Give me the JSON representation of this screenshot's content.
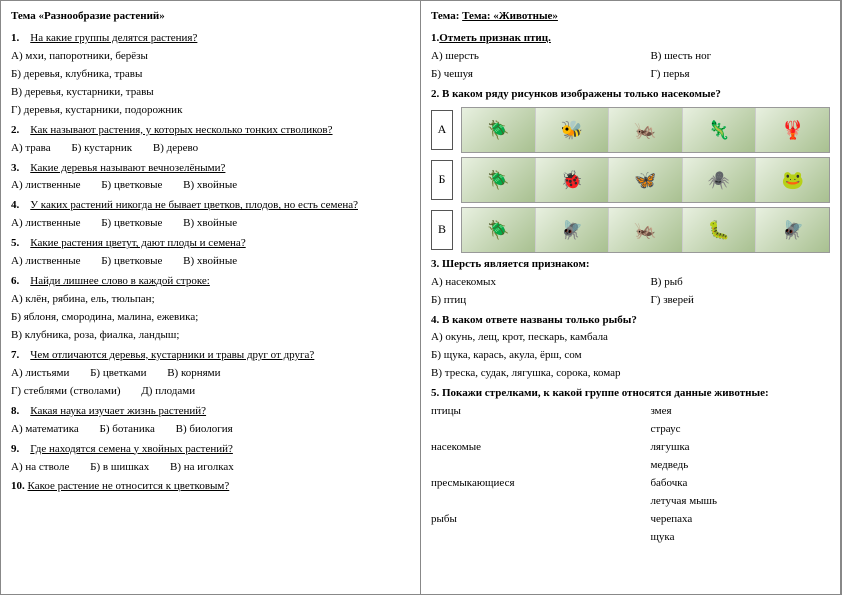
{
  "left": {
    "title": "Тема «Разнообразие растений»",
    "q1": {
      "num": "1.",
      "prompt": "На какие группы делятся растения?",
      "a": "А) мхи, папоротники, берёзы",
      "b": "Б) деревья, клубника, травы",
      "c": "В) деревья, кустарники, травы",
      "d": "Г) деревья, кустарники, подорожник"
    },
    "q2": {
      "num": "2.",
      "prompt": "Как называют растения, у которых несколько тонких стволиков?",
      "a": "А) трава",
      "b": "Б) кустарник",
      "c": "В) дерево"
    },
    "q3": {
      "num": "3.",
      "prompt": "Какие деревья называют вечнозелёными?",
      "a": "А) лиственные",
      "b": "Б) цветковые",
      "c": "В) хвойные"
    },
    "q4": {
      "num": "4.",
      "prompt": "У каких растений никогда не бывает цветков, плодов, но есть семена?",
      "a": "А) лиственные",
      "b": "Б) цветковые",
      "c": "В) хвойные"
    },
    "q5": {
      "num": "5.",
      "prompt": "Какие растения цветут, дают плоды и семена?",
      "a": "А) лиственные",
      "b": "Б) цветковые",
      "c": "В) хвойные"
    },
    "q6": {
      "num": "6.",
      "prompt": "Найди лишнее слово в каждой строке:",
      "a": "А) клён, рябина, ель, тюльпан;",
      "b": "Б) яблоня, смородина, малина, ежевика;",
      "c": "В) клубника, роза, фиалка, ландыш;"
    },
    "q7": {
      "num": "7.",
      "prompt": "Чем отличаются деревья, кустарники и травы друг от друга?",
      "a": "А) листьями",
      "b": "Б) цветками",
      "c": "В) корнями",
      "d": "Г) стеблями (стволами)",
      "e": "Д) плодами"
    },
    "q8": {
      "num": "8.",
      "prompt": "Какая наука изучает жизнь растений?",
      "a": "А) математика",
      "b": "Б) ботаника",
      "c": "В) биология"
    },
    "q9": {
      "num": "9.",
      "prompt": "Где находятся семена у хвойных растений?",
      "a": "А) на стволе",
      "b": "Б) в шишках",
      "c": "В) на иголках"
    },
    "q10": {
      "num": "10.",
      "prompt": "Какое растение не относится к цветковым?"
    }
  },
  "right": {
    "title": "Тема: «Животные»",
    "q1": {
      "num": "1.",
      "prompt": "Отметь признак птиц.",
      "a": "А) шерсть",
      "b": "Б) чешуя",
      "c": "В) шесть ног",
      "d": "Г) перья"
    },
    "q2": {
      "num": "2.",
      "prompt": "В каком ряду рисунков изображены только насекомые?",
      "rowA": "А",
      "rowB": "Б",
      "rowC": "В"
    },
    "q3": {
      "num": "3.",
      "prompt": "Шерсть является признаком:",
      "a": "А) насекомых",
      "b": "Б) птиц",
      "c": "В) рыб",
      "d": "Г) зверей"
    },
    "q4": {
      "num": "4.",
      "prompt": "В каком ответе названы только рыбы?",
      "a": "А) окунь, лещ, крот, пескарь, камбала",
      "b": "Б) щука, карась, акула, ёрш, сом",
      "c": "В) треска, судак, лягушка, сорока, комар"
    },
    "q5": {
      "num": "5.",
      "prompt": "Покажи стрелками, к какой группе относятся данные животные:",
      "left": [
        "птицы",
        "",
        "насекомые",
        "",
        "пресмыкающиеся",
        "",
        "рыбы"
      ],
      "right": [
        "змея",
        "страус",
        "лягушка",
        "медведь",
        "бабочка",
        "летучая мышь",
        "черепаха",
        "щука"
      ]
    }
  },
  "icons": {
    "rowA": [
      "🪲",
      "🐝",
      "🦗",
      "🦎",
      "🦞"
    ],
    "rowB": [
      "🪲",
      "🐞",
      "🦋",
      "🕷️",
      "🐸"
    ],
    "rowC": [
      "🪲",
      "🪰",
      "🦗",
      "🐛",
      "🪰"
    ]
  }
}
